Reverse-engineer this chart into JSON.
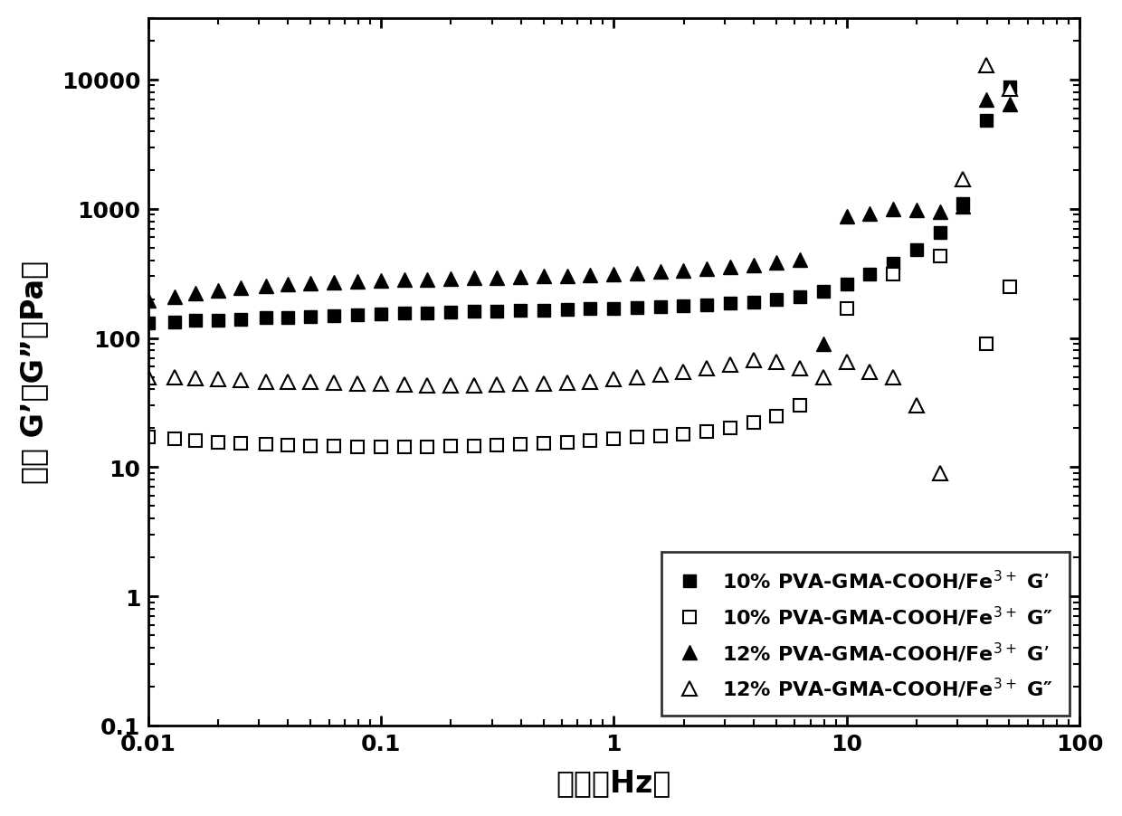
{
  "xlabel": "频率（Hz）",
  "ylabel": "模量 G’、G”（Pa）",
  "xlim": [
    0.01,
    100
  ],
  "ylim": [
    0.1,
    30000
  ],
  "x_10G": [
    0.01,
    0.013,
    0.016,
    0.02,
    0.025,
    0.032,
    0.04,
    0.05,
    0.063,
    0.079,
    0.1,
    0.126,
    0.158,
    0.2,
    0.251,
    0.316,
    0.398,
    0.501,
    0.631,
    0.794,
    1.0,
    1.259,
    1.585,
    1.995,
    2.512,
    3.162,
    3.981,
    5.012,
    6.31,
    7.943,
    10.0,
    12.59,
    15.85,
    19.95,
    25.12,
    31.62,
    39.81,
    50.12
  ],
  "y_10G": [
    130,
    133,
    136,
    138,
    140,
    143,
    145,
    147,
    149,
    151,
    153,
    155,
    157,
    158,
    160,
    161,
    163,
    164,
    166,
    168,
    170,
    172,
    174,
    177,
    180,
    185,
    190,
    200,
    210,
    230,
    260,
    310,
    380,
    480,
    650,
    1100,
    4800,
    8800
  ],
  "x_10Gpp": [
    0.01,
    0.013,
    0.016,
    0.02,
    0.025,
    0.032,
    0.04,
    0.05,
    0.063,
    0.079,
    0.1,
    0.126,
    0.158,
    0.2,
    0.251,
    0.316,
    0.398,
    0.501,
    0.631,
    0.794,
    1.0,
    1.259,
    1.585,
    1.995,
    2.512,
    3.162,
    3.981,
    5.012,
    6.31,
    10.0,
    15.85,
    25.12,
    39.81,
    50.12
  ],
  "y_10Gpp": [
    17,
    16.5,
    16,
    15.5,
    15.2,
    15,
    14.8,
    14.6,
    14.5,
    14.4,
    14.3,
    14.3,
    14.4,
    14.5,
    14.6,
    14.8,
    15.0,
    15.2,
    15.5,
    16,
    16.5,
    17,
    17.5,
    18,
    19,
    20,
    22,
    25,
    30,
    170,
    310,
    430,
    90,
    250
  ],
  "x_12G": [
    0.01,
    0.013,
    0.016,
    0.02,
    0.025,
    0.032,
    0.04,
    0.05,
    0.063,
    0.079,
    0.1,
    0.126,
    0.158,
    0.2,
    0.251,
    0.316,
    0.398,
    0.501,
    0.631,
    0.794,
    1.0,
    1.259,
    1.585,
    1.995,
    2.512,
    3.162,
    3.981,
    5.012,
    6.31,
    7.943,
    10.0,
    12.59,
    15.85,
    19.95,
    25.12,
    31.62,
    39.81,
    50.12
  ],
  "y_12G": [
    195,
    210,
    222,
    235,
    245,
    253,
    260,
    265,
    270,
    274,
    278,
    282,
    285,
    288,
    291,
    294,
    297,
    300,
    303,
    307,
    312,
    318,
    325,
    333,
    342,
    353,
    367,
    385,
    405,
    90,
    870,
    920,
    1000,
    980,
    950,
    1050,
    7000,
    6500
  ],
  "x_12Gpp": [
    0.01,
    0.013,
    0.016,
    0.02,
    0.025,
    0.032,
    0.04,
    0.05,
    0.063,
    0.079,
    0.1,
    0.126,
    0.158,
    0.2,
    0.251,
    0.316,
    0.398,
    0.501,
    0.631,
    0.794,
    1.0,
    1.259,
    1.585,
    1.995,
    2.512,
    3.162,
    3.981,
    5.012,
    6.31,
    7.943,
    10.0,
    12.59,
    15.85,
    19.95,
    25.12,
    31.62,
    39.81,
    50.12
  ],
  "y_12Gpp": [
    50,
    50,
    49,
    48,
    47,
    46,
    46,
    45.5,
    45,
    44.5,
    44,
    43.5,
    43,
    43,
    43,
    43.5,
    44,
    44.5,
    45,
    46,
    48,
    50,
    52,
    55,
    58,
    62,
    67,
    65,
    58,
    50,
    65,
    55,
    50,
    30,
    9,
    1700,
    13000,
    8500
  ],
  "legend_entries": [
    "10% PVA-GMA-COOH/Fe$^{3+}$ G’",
    "10% PVA-GMA-COOH/Fe$^{3+}$ G″",
    "12% PVA-GMA-COOH/Fe$^{3+}$ G’",
    "12% PVA-GMA-COOH/Fe$^{3+}$ G″"
  ]
}
